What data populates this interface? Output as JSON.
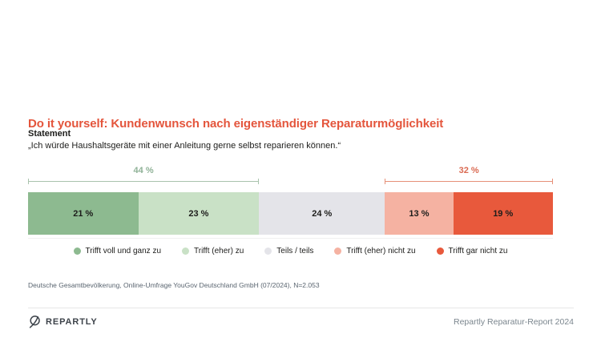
{
  "title": "Do it yourself: Kundenwunsch nach eigenständiger Reparaturmöglichkeit",
  "statement": {
    "label": "Statement",
    "quote": "„Ich würde Haushaltsgeräte mit einer Anleitung gerne selbst reparieren können.“"
  },
  "chart_data": {
    "type": "bar",
    "variant": "stacked-horizontal-100percent",
    "title": "Do it yourself: Kundenwunsch nach eigenständiger Reparaturmöglichkeit",
    "categories": [
      "Trifft voll und ganz zu",
      "Trifft (eher) zu",
      "Teils / teils",
      "Trifft (eher) nicht zu",
      "Trifft gar nicht zu"
    ],
    "values": [
      21,
      23,
      24,
      13,
      19
    ],
    "value_labels": [
      "21 %",
      "23 %",
      "24 %",
      "13 %",
      "19 %"
    ],
    "unit": "%",
    "segment_colors": [
      "#8dba90",
      "#c9e1c6",
      "#e4e4e9",
      "#f5b2a2",
      "#e8593c"
    ],
    "brackets": [
      {
        "label": "44 %",
        "value": 44,
        "start_pct": 0,
        "span_pct": 44,
        "label_color": "#8fb297",
        "line_color": "#a9c3ad"
      },
      {
        "label": "32 %",
        "value": 32,
        "start_pct": 68,
        "span_pct": 32,
        "label_color": "#da6a52",
        "line_color": "#e69078"
      }
    ],
    "legend_position": "bottom-center",
    "grid": false
  },
  "legend": [
    {
      "label": "Trifft voll und ganz zu",
      "color": "#8dba90"
    },
    {
      "label": "Trifft (eher) zu",
      "color": "#c9e1c6"
    },
    {
      "label": "Teils / teils",
      "color": "#e4e4e9"
    },
    {
      "label": "Trifft (eher) nicht zu",
      "color": "#f5b2a2"
    },
    {
      "label": "Trifft gar nicht zu",
      "color": "#e8593c"
    }
  ],
  "source": "Deutsche Gesamtbevölkerung, Online-Umfrage YouGov Deutschland GmbH (07/2024), N=2.053",
  "footer": {
    "brand": "REPARTLY",
    "report": "Repartly Reparatur-Report 2024"
  },
  "colors": {
    "accent_red": "#e4553c",
    "text_dark": "#1d1d1b",
    "source_gray": "#5a6570",
    "footer_gray": "#7b868e",
    "brand_dark": "#3d434a",
    "divider": "#e7e7e7"
  }
}
